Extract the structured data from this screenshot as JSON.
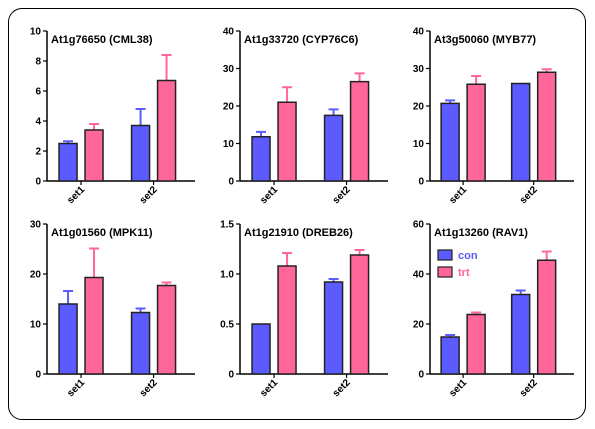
{
  "colors": {
    "con": "#5b5bff",
    "trt": "#ff6699",
    "axis": "#000000",
    "bar_stroke": "#222222"
  },
  "legend": {
    "entries": [
      "con",
      "trt"
    ],
    "placement": "inside-left"
  },
  "chart_data": [
    {
      "type": "bar",
      "title": "At1g76650 (CML38)",
      "categories": [
        "set1",
        "set2"
      ],
      "ylim": [
        0,
        10
      ],
      "yticks": [
        0,
        2,
        4,
        6,
        8,
        10
      ],
      "series": [
        {
          "name": "con",
          "values": [
            2.5,
            3.7
          ],
          "errors": [
            0.15,
            1.1
          ]
        },
        {
          "name": "trt",
          "values": [
            3.4,
            6.7
          ],
          "errors": [
            0.4,
            1.7
          ]
        }
      ]
    },
    {
      "type": "bar",
      "title": "At1g33720 (CYP76C6)",
      "categories": [
        "set1",
        "set2"
      ],
      "ylim": [
        0,
        40
      ],
      "yticks": [
        0,
        10,
        20,
        30,
        40
      ],
      "series": [
        {
          "name": "con",
          "values": [
            11.8,
            17.5
          ],
          "errors": [
            1.3,
            1.6
          ]
        },
        {
          "name": "trt",
          "values": [
            21,
            26.5
          ],
          "errors": [
            4.0,
            2.2
          ]
        }
      ]
    },
    {
      "type": "bar",
      "title": "At3g50060 (MYB77)",
      "categories": [
        "set1",
        "set2"
      ],
      "ylim": [
        0,
        40
      ],
      "yticks": [
        0,
        10,
        20,
        30,
        40
      ],
      "series": [
        {
          "name": "con",
          "values": [
            20.7,
            26
          ],
          "errors": [
            0.8,
            0
          ]
        },
        {
          "name": "trt",
          "values": [
            25.8,
            29
          ],
          "errors": [
            2.2,
            0.8
          ]
        }
      ]
    },
    {
      "type": "bar",
      "title": "At1g01560  (MPK11)",
      "categories": [
        "set1",
        "set2"
      ],
      "ylim": [
        0,
        30
      ],
      "yticks": [
        0,
        10,
        20,
        30
      ],
      "series": [
        {
          "name": "con",
          "values": [
            14,
            12.3
          ],
          "errors": [
            2.6,
            0.8
          ]
        },
        {
          "name": "trt",
          "values": [
            19.3,
            17.7
          ],
          "errors": [
            5.8,
            0.6
          ]
        }
      ]
    },
    {
      "type": "bar",
      "title": "At1g21910 (DREB26)",
      "categories": [
        "set1",
        "set2"
      ],
      "ylim": [
        0,
        1.5
      ],
      "yticks": [
        "0",
        "0.5",
        "1.0",
        "1.5"
      ],
      "series": [
        {
          "name": "con",
          "values": [
            0.5,
            0.92
          ],
          "errors": [
            0,
            0.03
          ]
        },
        {
          "name": "trt",
          "values": [
            1.08,
            1.19
          ],
          "errors": [
            0.13,
            0.05
          ]
        }
      ]
    },
    {
      "type": "bar",
      "title": "At1g13260 (RAV1)",
      "categories": [
        "set1",
        "set2"
      ],
      "ylim": [
        0,
        60
      ],
      "yticks": [
        0,
        20,
        40,
        60
      ],
      "series": [
        {
          "name": "con",
          "values": [
            14.8,
            31.8
          ],
          "errors": [
            0.8,
            1.6
          ]
        },
        {
          "name": "trt",
          "values": [
            23.8,
            45.5
          ],
          "errors": [
            0.8,
            3.5
          ]
        }
      ]
    }
  ]
}
